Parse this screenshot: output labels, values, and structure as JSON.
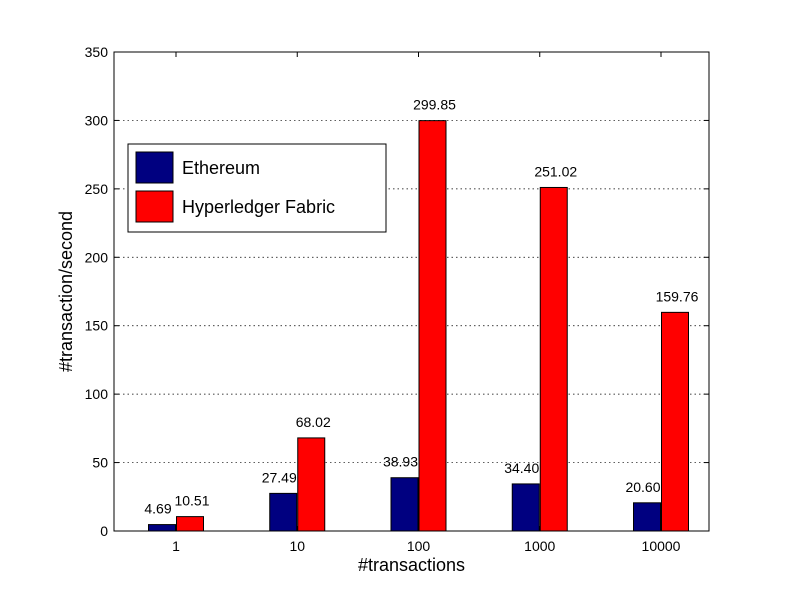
{
  "chart_data": {
    "type": "bar",
    "title": "",
    "xlabel": "#transactions",
    "ylabel": "#transaction/second",
    "categories": [
      "1",
      "10",
      "100",
      "1000",
      "10000"
    ],
    "ylim": [
      0,
      350
    ],
    "yticks": [
      0,
      50,
      100,
      150,
      200,
      250,
      300,
      350
    ],
    "grid": true,
    "legend_position": "top-left",
    "series": [
      {
        "name": "Ethereum",
        "color": "#000080",
        "values": [
          4.69,
          27.49,
          38.93,
          34.4,
          20.6
        ],
        "labels": [
          "4.69",
          "27.49",
          "38.93",
          "34.40",
          "20.60"
        ]
      },
      {
        "name": "Hyperledger Fabric",
        "color": "#ff0000",
        "values": [
          10.51,
          68.02,
          299.85,
          251.02,
          159.76
        ],
        "labels": [
          "10.51",
          "68.02",
          "299.85",
          "251.02",
          "159.76"
        ]
      }
    ]
  }
}
